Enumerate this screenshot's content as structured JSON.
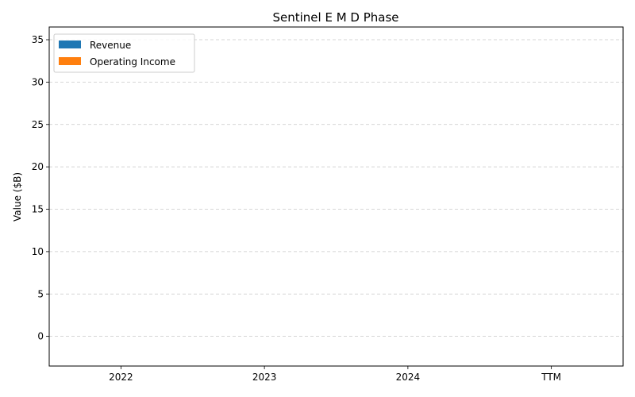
{
  "chart_data": {
    "type": "bar",
    "title": "Sentinel E M D Phase",
    "xlabel": "",
    "ylabel": "Value ($B)",
    "categories": [
      "2022",
      "2023",
      "2024",
      "TTM"
    ],
    "series": [
      {
        "name": "Revenue",
        "values": [
          0,
          0,
          0,
          0
        ],
        "color": "#1f77b4"
      },
      {
        "name": "Operating Income",
        "values": [
          0,
          0,
          0,
          0
        ],
        "color": "#ff7f0e"
      }
    ],
    "ylim": [
      -3.5,
      36.5
    ],
    "yticks": [
      0,
      5,
      10,
      15,
      20,
      25,
      30,
      35
    ],
    "grid": "y-dashed",
    "legend_position": "top-left"
  }
}
